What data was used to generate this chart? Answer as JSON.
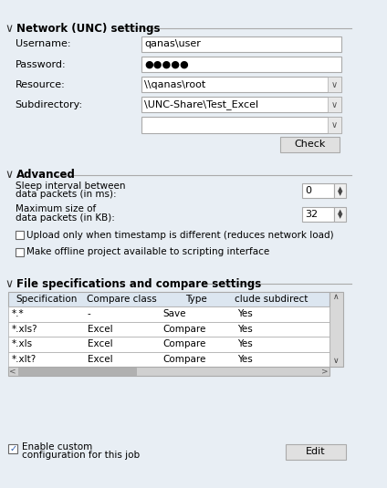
{
  "bg_color": "#e8eef4",
  "white": "#ffffff",
  "border_color": "#aaaaaa",
  "checkbox_border": "#666666",
  "network_section_title": "Network (UNC) settings",
  "advanced_section_title": "Advanced",
  "file_section_title": "File specifications and compare settings",
  "fields": [
    {
      "label": "Username:",
      "value": "qanas\\user",
      "has_dropdown": false
    },
    {
      "label": "Password:",
      "value": "●●●●●",
      "has_dropdown": false
    },
    {
      "label": "Resource:",
      "value": "\\\\qanas\\root",
      "has_dropdown": true
    },
    {
      "label": "Subdirectory:",
      "value": "\\UNC-Share\\Test_Excel",
      "has_dropdown": true
    }
  ],
  "check_button_label": "Check",
  "spinners": [
    {
      "label1": "Sleep interval between",
      "label2": "data packets (in ms):",
      "value": "0"
    },
    {
      "label1": "Maximum size of",
      "label2": "data packets (in KB):",
      "value": "32"
    }
  ],
  "checkboxes": [
    {
      "label": "Upload only when timestamp is different (reduces network load)",
      "checked": false
    },
    {
      "label": "Make offline project available to scripting interface",
      "checked": false
    }
  ],
  "table_headers": [
    "Specification",
    "Compare class",
    "Type",
    "clude subdirect"
  ],
  "table_rows": [
    [
      "*.*",
      "-",
      "Save",
      "Yes"
    ],
    [
      "*.xls?",
      "Excel",
      "Compare",
      "Yes"
    ],
    [
      "*.xls",
      "Excel",
      "Compare",
      "Yes"
    ],
    [
      "*.xlt?",
      "Excel",
      "Compare",
      "Yes"
    ]
  ],
  "bottom_checkbox_label1": "Enable custom",
  "bottom_checkbox_label2": "configuration for this job",
  "bottom_checkbox_checked": true,
  "edit_button_label": "Edit"
}
